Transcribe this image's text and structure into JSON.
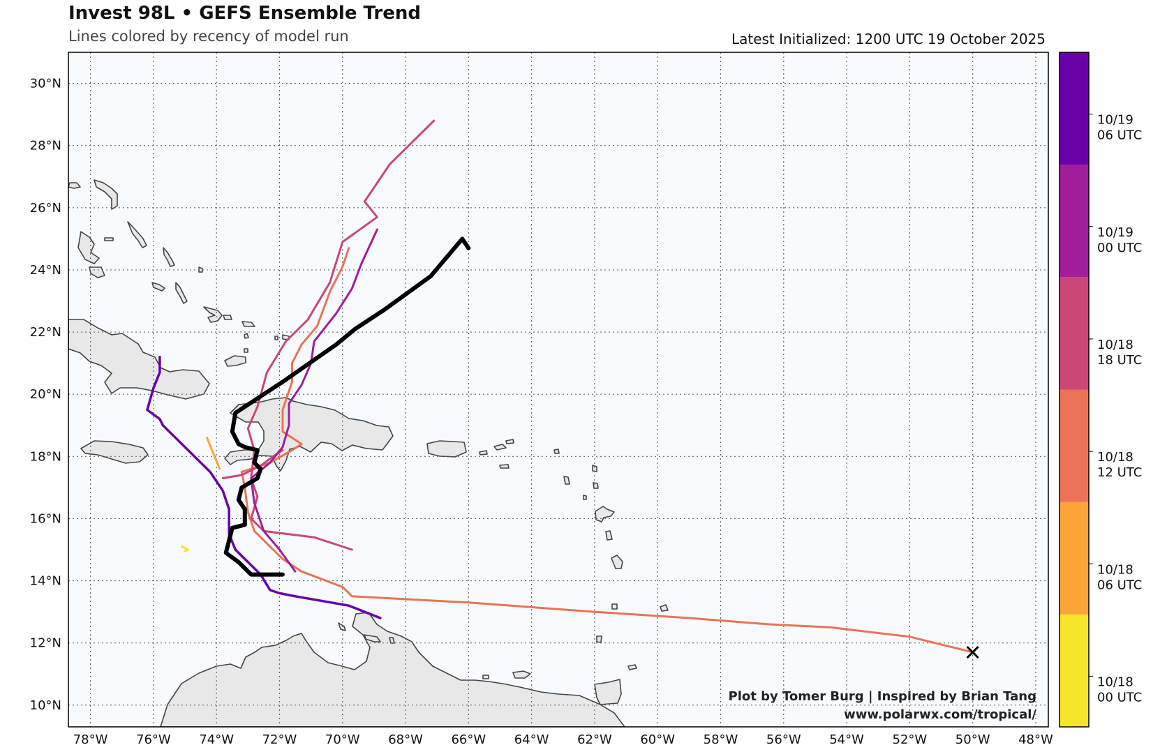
{
  "header": {
    "title": "Invest 98L • GEFS Ensemble Trend",
    "subtitle": "Lines colored by recency of model run",
    "latest": "Latest Initialized: 1200 UTC 19 October 2025"
  },
  "credit": {
    "line1": "Plot by Tomer Burg | Inspired by Brian Tang",
    "line2": "www.polarwx.com/tropical/"
  },
  "map": {
    "lon_range": [
      -78.7,
      -47.6
    ],
    "lat_range": [
      9.3,
      31.0
    ],
    "lon_ticks": [
      -78,
      -76,
      -74,
      -72,
      -70,
      -68,
      -66,
      -64,
      -62,
      -60,
      -58,
      -56,
      -54,
      -52,
      -50,
      -48
    ],
    "lon_tick_labels": [
      "78°W",
      "76°W",
      "74°W",
      "72°W",
      "70°W",
      "68°W",
      "66°W",
      "64°W",
      "62°W",
      "60°W",
      "58°W",
      "56°W",
      "54°W",
      "52°W",
      "50°W",
      "48°W"
    ],
    "lat_ticks": [
      10,
      12,
      14,
      16,
      18,
      20,
      22,
      24,
      26,
      28,
      30
    ],
    "lat_tick_labels": [
      "10°N",
      "12°N",
      "14°N",
      "16°N",
      "18°N",
      "20°N",
      "22°N",
      "24°N",
      "26°N",
      "28°N",
      "30°N"
    ],
    "grid": true,
    "land_color": "#e8e8e8",
    "ocean_color": "#f7fbfd"
  },
  "colorbar": {
    "levels": [
      {
        "label": "10/18\n00 UTC",
        "color": "#f6e52a"
      },
      {
        "label": "10/18\n06 UTC",
        "color": "#fba538"
      },
      {
        "label": "10/18\n12 UTC",
        "color": "#eb7256"
      },
      {
        "label": "10/18\n18 UTC",
        "color": "#cb4778"
      },
      {
        "label": "10/19\n00 UTC",
        "color": "#a11d9a"
      },
      {
        "label": "10/19\n06 UTC",
        "color": "#6a00a8"
      }
    ]
  },
  "marker": {
    "lon": -50.0,
    "lat": 11.7,
    "symbol": "x"
  },
  "chart_data": {
    "type": "line",
    "series": [
      {
        "run": "10/18 00 UTC",
        "color": "#f6e52a",
        "width": 3,
        "points": [
          [
            -75.1,
            15.1
          ],
          [
            -74.9,
            15.0
          ],
          [
            -75.0,
            14.95
          ]
        ]
      },
      {
        "run": "10/18 06 UTC",
        "color": "#fba538",
        "width": 3,
        "points": [
          [
            -74.3,
            18.6
          ],
          [
            -74.1,
            18.1
          ],
          [
            -73.9,
            17.6
          ]
        ]
      },
      {
        "run": "10/18 12 UTC",
        "color": "#eb7256",
        "width": 3,
        "points": [
          [
            -50.0,
            11.7
          ],
          [
            -52.0,
            12.2
          ],
          [
            -54.5,
            12.5
          ],
          [
            -56.5,
            12.6
          ],
          [
            -59.0,
            12.8
          ],
          [
            -62.0,
            13.0
          ],
          [
            -66.0,
            13.3
          ],
          [
            -69.7,
            13.5
          ],
          [
            -70.0,
            13.8
          ],
          [
            -71.3,
            14.3
          ],
          [
            -71.9,
            14.7
          ],
          [
            -72.3,
            15.1
          ],
          [
            -72.8,
            15.6
          ],
          [
            -73.0,
            16.2
          ],
          [
            -73.1,
            17.0
          ],
          [
            -73.2,
            17.5
          ],
          [
            -72.3,
            17.8
          ],
          [
            -71.6,
            18.2
          ],
          [
            -71.3,
            18.4
          ],
          [
            -71.9,
            18.8
          ],
          [
            -71.9,
            19.5
          ],
          [
            -71.6,
            20.4
          ],
          [
            -71.6,
            21.0
          ],
          [
            -71.3,
            21.6
          ],
          [
            -70.8,
            22.2
          ],
          [
            -70.4,
            23.3
          ],
          [
            -70.0,
            24.1
          ],
          [
            -69.8,
            24.7
          ]
        ]
      },
      {
        "run": "10/18 18 UTC",
        "color": "#cb4778",
        "width": 3,
        "points": [
          [
            -69.7,
            15.0
          ],
          [
            -70.9,
            15.4
          ],
          [
            -72.5,
            15.6
          ],
          [
            -72.9,
            16.0
          ],
          [
            -72.7,
            16.7
          ],
          [
            -72.9,
            17.3
          ],
          [
            -72.8,
            18.2
          ],
          [
            -73.0,
            18.9
          ],
          [
            -72.7,
            19.6
          ],
          [
            -72.4,
            20.7
          ],
          [
            -71.8,
            21.7
          ],
          [
            -71.1,
            22.4
          ],
          [
            -70.4,
            23.6
          ],
          [
            -70.0,
            24.9
          ],
          [
            -68.9,
            25.7
          ],
          [
            -69.3,
            26.2
          ],
          [
            -68.5,
            27.4
          ],
          [
            -67.1,
            28.8
          ]
        ]
      },
      {
        "run": "10/18 18 UTC (b)",
        "color": "#cb4778",
        "width": 3,
        "points": [
          [
            -73.8,
            17.3
          ],
          [
            -73.2,
            17.4
          ],
          [
            -72.6,
            17.7
          ],
          [
            -72.2,
            18.0
          ],
          [
            -71.9,
            18.2
          ]
        ]
      },
      {
        "run": "10/19 00 UTC",
        "color": "#a11d9a",
        "width": 3,
        "points": [
          [
            -71.5,
            14.3
          ],
          [
            -72.0,
            15.0
          ],
          [
            -72.5,
            15.6
          ],
          [
            -72.8,
            16.5
          ],
          [
            -72.9,
            17.3
          ],
          [
            -72.3,
            17.8
          ],
          [
            -71.9,
            18.3
          ],
          [
            -71.7,
            19.0
          ],
          [
            -71.7,
            19.7
          ],
          [
            -71.3,
            20.3
          ],
          [
            -71.0,
            21.0
          ],
          [
            -70.9,
            21.7
          ],
          [
            -70.2,
            22.6
          ],
          [
            -69.7,
            23.4
          ],
          [
            -69.4,
            24.2
          ],
          [
            -68.9,
            25.3
          ]
        ]
      },
      {
        "run": "10/19 06 UTC",
        "color": "#6a00a8",
        "width": 3.5,
        "points": [
          [
            -68.8,
            12.8
          ],
          [
            -69.8,
            13.2
          ],
          [
            -71.5,
            13.5
          ],
          [
            -72.0,
            13.6
          ],
          [
            -72.3,
            13.7
          ],
          [
            -72.6,
            14.2
          ],
          [
            -73.0,
            14.6
          ],
          [
            -73.4,
            15.0
          ],
          [
            -73.6,
            15.5
          ],
          [
            -73.6,
            15.9
          ],
          [
            -73.6,
            16.3
          ],
          [
            -73.8,
            16.9
          ],
          [
            -74.2,
            17.5
          ],
          [
            -75.1,
            18.4
          ],
          [
            -75.7,
            19.0
          ],
          [
            -75.8,
            19.2
          ],
          [
            -76.2,
            19.5
          ],
          [
            -76.0,
            20.2
          ],
          [
            -75.8,
            20.7
          ],
          [
            -75.8,
            21.2
          ]
        ]
      },
      {
        "run": "10/19 12 UTC",
        "color": "#000000",
        "width": 6,
        "points": [
          [
            -71.9,
            14.2
          ],
          [
            -72.9,
            14.2
          ],
          [
            -73.3,
            14.6
          ],
          [
            -73.7,
            14.9
          ],
          [
            -73.5,
            15.7
          ],
          [
            -73.1,
            15.8
          ],
          [
            -73.1,
            16.3
          ],
          [
            -73.3,
            16.6
          ],
          [
            -73.2,
            17.0
          ],
          [
            -72.7,
            17.3
          ],
          [
            -72.6,
            17.6
          ],
          [
            -72.8,
            17.8
          ],
          [
            -72.7,
            18.2
          ],
          [
            -73.1,
            18.3
          ],
          [
            -73.3,
            18.4
          ],
          [
            -73.5,
            18.8
          ],
          [
            -73.4,
            19.4
          ],
          [
            -72.8,
            19.8
          ],
          [
            -71.9,
            20.4
          ],
          [
            -70.2,
            21.6
          ],
          [
            -69.6,
            22.1
          ],
          [
            -68.7,
            22.7
          ],
          [
            -67.2,
            23.8
          ],
          [
            -66.2,
            25.0
          ],
          [
            -66.0,
            24.7
          ]
        ]
      }
    ]
  }
}
